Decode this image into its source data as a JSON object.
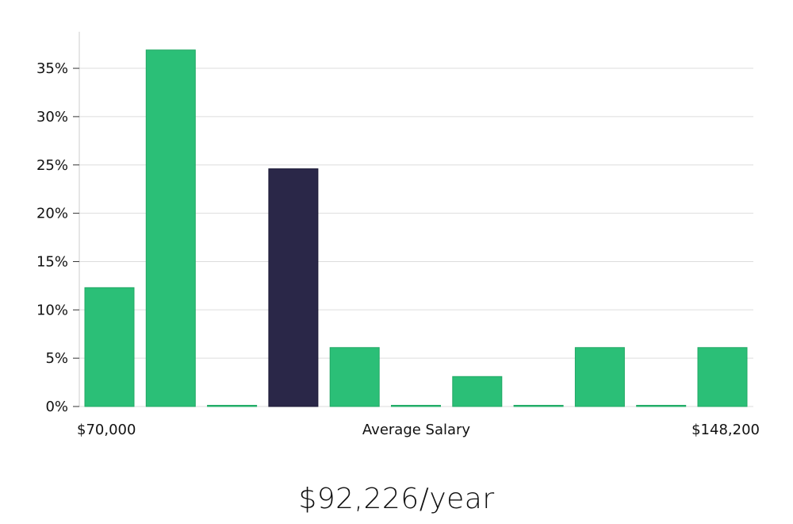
{
  "chart_data": {
    "type": "bar",
    "title": "",
    "xlabel": "Average Salary",
    "ylabel": "",
    "x_start_label": "$70,000",
    "x_end_label": "$148,200",
    "y_tick_labels": [
      "0%",
      "5%",
      "10%",
      "15%",
      "20%",
      "25%",
      "30%",
      "35%"
    ],
    "y_ticks": [
      0,
      5,
      10,
      15,
      20,
      25,
      30,
      35
    ],
    "ylim": [
      0,
      38
    ],
    "grid": true,
    "values": [
      12.3,
      36.9,
      0,
      24.6,
      6.1,
      0,
      3.1,
      0,
      6.1,
      0,
      6.1
    ],
    "highlight_index": 3,
    "colors": {
      "bar": "#2bbf77",
      "bar_border": "#22a865",
      "highlight": "#2a2748",
      "grid": "#dddddd",
      "axis": "#cccccc"
    }
  },
  "average_label": "$92,226/year"
}
